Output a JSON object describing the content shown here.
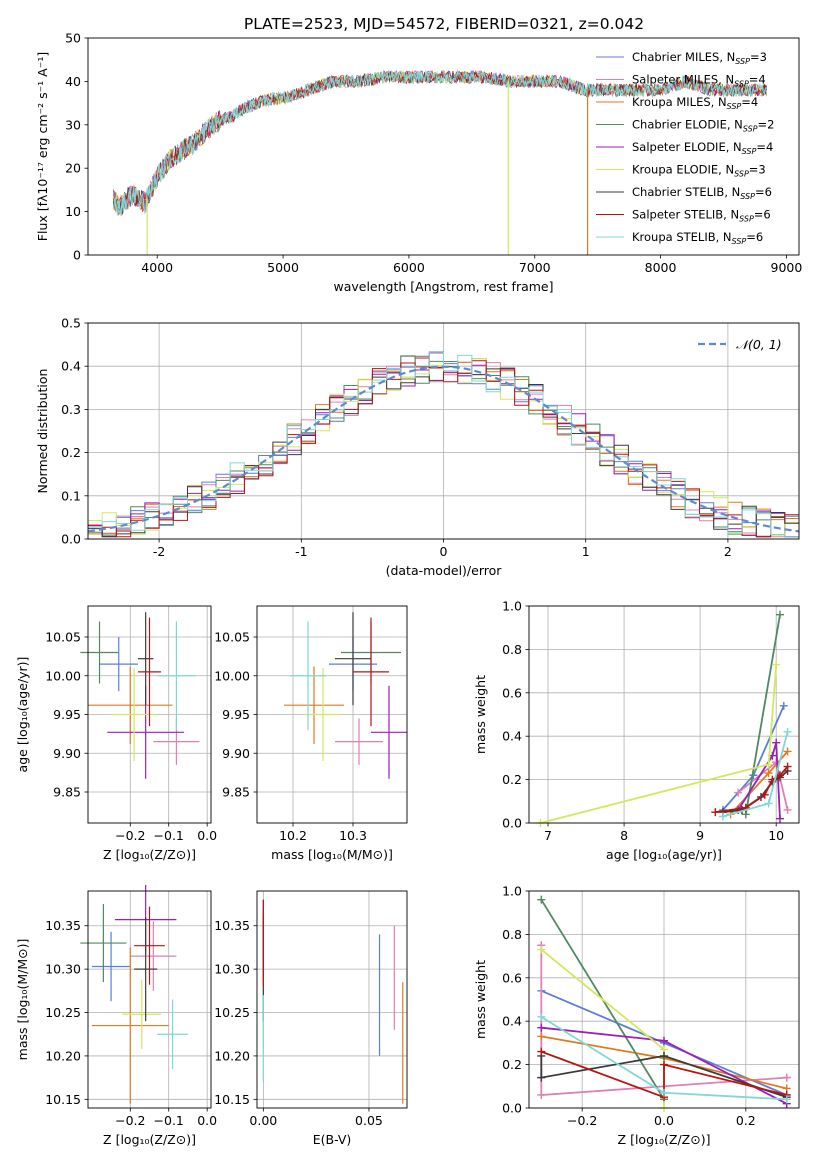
{
  "figure": {
    "title": "PLATE=2523, MJD=54572, FIBERID=0321, z=0.042"
  },
  "chart_data": [
    {
      "id": "spectrum",
      "type": "line",
      "xlabel": "wavelength [Angstrom, rest frame]",
      "ylabel": "Flux [fλ10⁻¹⁷ erg cm⁻² s⁻¹ A⁻¹]",
      "xlim": [
        3450,
        9100
      ],
      "ylim": [
        0,
        50
      ],
      "xticks": [
        4000,
        5000,
        6000,
        7000,
        8000,
        9000
      ],
      "yticks": [
        0,
        10,
        20,
        30,
        40,
        50
      ],
      "grid": false,
      "legend_position": "upper-right",
      "continuum": {
        "x": [
          3650,
          3700,
          3800,
          3900,
          4000,
          4100,
          4200,
          4300,
          4400,
          4500,
          4600,
          4700,
          4800,
          4900,
          5000,
          5200,
          5400,
          5600,
          5800,
          6000,
          6200,
          6400,
          6600,
          6800,
          7000,
          7200,
          7400,
          7600,
          7800,
          8000,
          8200,
          8400,
          8600,
          8850
        ],
        "y": [
          13,
          11,
          14,
          12,
          18,
          22,
          24,
          26,
          29,
          31,
          32,
          34,
          35,
          36,
          36,
          38,
          40,
          40,
          41,
          41,
          41,
          41,
          41,
          40,
          40,
          40,
          38,
          38,
          38,
          38,
          40,
          38,
          38,
          38
        ]
      },
      "dropouts": [
        {
          "x": 3920,
          "series": "Kroupa ELODIE"
        },
        {
          "x": 6790,
          "series": "Kroupa ELODIE"
        },
        {
          "x": 7420,
          "series": "Kroupa MILES"
        }
      ],
      "series": [
        {
          "name": "Chabrier MILES, N_SSP=3",
          "name_main": "Chabrier MILES, N",
          "name_sub": "SSP",
          "name_tail": "=3",
          "color": "#5b7fd6"
        },
        {
          "name": "Salpeter MILES, N_SSP=4",
          "name_main": "Salpeter MILES, N",
          "name_sub": "SSP",
          "name_tail": "=4",
          "color": "#e07fb3"
        },
        {
          "name": "Kroupa MILES, N_SSP=4",
          "name_main": "Kroupa MILES, N",
          "name_sub": "SSP",
          "name_tail": "=4",
          "color": "#e07a1f"
        },
        {
          "name": "Chabrier ELODIE, N_SSP=2",
          "name_main": "Chabrier ELODIE, N",
          "name_sub": "SSP",
          "name_tail": "=2",
          "color": "#4f8a62"
        },
        {
          "name": "Salpeter ELODIE, N_SSP=4",
          "name_main": "Salpeter ELODIE, N",
          "name_sub": "SSP",
          "name_tail": "=4",
          "color": "#9b1fb5"
        },
        {
          "name": "Kroupa ELODIE, N_SSP=3",
          "name_main": "Kroupa ELODIE, N",
          "name_sub": "SSP",
          "name_tail": "=3",
          "color": "#d3e85a"
        },
        {
          "name": "Chabrier STELIB, N_SSP=6",
          "name_main": "Chabrier STELIB, N",
          "name_sub": "SSP",
          "name_tail": "=6",
          "color": "#3b3b3b"
        },
        {
          "name": "Salpeter STELIB, N_SSP=6",
          "name_main": "Salpeter STELIB, N",
          "name_sub": "SSP",
          "name_tail": "=6",
          "color": "#b81414"
        },
        {
          "name": "Kroupa STELIB, N_SSP=6",
          "name_main": "Kroupa STELIB, N",
          "name_sub": "SSP",
          "name_tail": "=6",
          "color": "#7fd7d6"
        }
      ]
    },
    {
      "id": "residuals",
      "type": "line",
      "xlabel": "(data-model)/error",
      "ylabel": "Normed distribution",
      "xlim": [
        -2.5,
        2.5
      ],
      "ylim": [
        0,
        0.5
      ],
      "xticks": [
        -2,
        -1,
        0,
        1,
        2
      ],
      "yticks": [
        0.0,
        0.1,
        0.2,
        0.3,
        0.4,
        0.5
      ],
      "ytick_labels": [
        "0.0",
        "0.1",
        "0.2",
        "0.3",
        "0.4",
        "0.5"
      ],
      "grid": true,
      "legend": "𝒩(0, 1)",
      "legend_position": "upper-right",
      "bin_width": 0.1,
      "bin_start": -2.5,
      "gaussian": {
        "mean": 0,
        "sigma": 1,
        "color": "#5b8ad6"
      }
    },
    {
      "id": "age-Z",
      "type": "scatter",
      "xlabel": "Z [log₁₀(Z/Z⊙)]",
      "ylabel": "age  [log₁₀(age/yr)]",
      "xlim": [
        -0.31,
        0.01
      ],
      "ylim": [
        9.81,
        10.09
      ],
      "xticks": [
        -0.2,
        -0.1,
        0.0
      ],
      "xtick_labels": [
        "−0.2",
        "−0.1",
        "0.0"
      ],
      "yticks": [
        9.85,
        9.9,
        9.95,
        10.0,
        10.05
      ],
      "ytick_labels": [
        "9.85",
        "9.90",
        "9.95",
        "10.00",
        "10.05"
      ],
      "grid": true,
      "points": [
        {
          "color": "#5b7fd6",
          "x": -0.23,
          "xerr": 0.05,
          "y": 10.015,
          "yerr": 0.035
        },
        {
          "color": "#e07fb3",
          "x": -0.08,
          "xerr": 0.06,
          "y": 9.915,
          "yerr": 0.03
        },
        {
          "color": "#e07a1f",
          "x": -0.2,
          "xerr": 0.11,
          "y": 9.962,
          "yerr": 0.05
        },
        {
          "color": "#4f8a62",
          "x": -0.28,
          "xerr": 0.05,
          "y": 10.03,
          "yerr": 0.04
        },
        {
          "color": "#9b1fb5",
          "x": -0.16,
          "xerr": 0.1,
          "y": 9.927,
          "yerr": 0.06
        },
        {
          "color": "#d3e85a",
          "x": -0.19,
          "xerr": 0.06,
          "y": 9.95,
          "yerr": 0.06
        },
        {
          "color": "#3b3b3b",
          "x": -0.16,
          "xerr": 0.02,
          "y": 10.022,
          "yerr": 0.06
        },
        {
          "color": "#b81414",
          "x": -0.15,
          "xerr": 0.03,
          "y": 10.005,
          "yerr": 0.07
        },
        {
          "color": "#7fd7d6",
          "x": -0.08,
          "xerr": 0.05,
          "y": 10.0,
          "yerr": 0.07
        }
      ]
    },
    {
      "id": "age-mass",
      "type": "scatter",
      "xlabel": "mass [log₁₀(M/M⊙)]",
      "ylabel": "",
      "xlim": [
        10.14,
        10.39
      ],
      "ylim": [
        9.81,
        10.09
      ],
      "xticks": [
        10.2,
        10.3
      ],
      "xtick_labels": [
        "10.2",
        "10.3"
      ],
      "yticks": [
        9.85,
        9.9,
        9.95,
        10.0,
        10.05
      ],
      "ytick_labels": [
        "9.85",
        "9.90",
        "9.95",
        "10.00",
        "10.05"
      ],
      "grid": true,
      "points": [
        {
          "color": "#5b7fd6",
          "x": 10.3,
          "xerr": 0.04,
          "y": 10.015,
          "yerr": 0.035
        },
        {
          "color": "#e07fb3",
          "x": 10.31,
          "xerr": 0.04,
          "y": 9.915,
          "yerr": 0.03
        },
        {
          "color": "#e07a1f",
          "x": 10.235,
          "xerr": 0.05,
          "y": 9.962,
          "yerr": 0.05
        },
        {
          "color": "#4f8a62",
          "x": 10.33,
          "xerr": 0.05,
          "y": 10.03,
          "yerr": 0.04
        },
        {
          "color": "#9b1fb5",
          "x": 10.36,
          "xerr": 0.03,
          "y": 9.927,
          "yerr": 0.06
        },
        {
          "color": "#d3e85a",
          "x": 10.25,
          "xerr": 0.03,
          "y": 9.95,
          "yerr": 0.06
        },
        {
          "color": "#3b3b3b",
          "x": 10.3,
          "xerr": 0.03,
          "y": 10.022,
          "yerr": 0.06
        },
        {
          "color": "#b81414",
          "x": 10.33,
          "xerr": 0.03,
          "y": 10.005,
          "yerr": 0.07
        },
        {
          "color": "#7fd7d6",
          "x": 10.225,
          "xerr": 0.03,
          "y": 10.0,
          "yerr": 0.07
        }
      ]
    },
    {
      "id": "weight-age",
      "type": "line",
      "xlabel": "age  [log₁₀(age/yr)]",
      "ylabel": "mass weight",
      "xlim": [
        6.75,
        10.3
      ],
      "ylim": [
        0,
        1.0
      ],
      "xticks": [
        7,
        8,
        9,
        10
      ],
      "yticks": [
        0.0,
        0.2,
        0.4,
        0.6,
        0.8,
        1.0
      ],
      "ytick_labels": [
        "0.0",
        "0.2",
        "0.4",
        "0.6",
        "0.8",
        "1.0"
      ],
      "grid": true,
      "series": [
        {
          "color": "#5b7fd6",
          "x": [
            9.3,
            9.7,
            10.1
          ],
          "y": [
            0.06,
            0.22,
            0.54
          ]
        },
        {
          "color": "#e07fb3",
          "x": [
            9.5,
            10.0,
            10.15
          ],
          "y": [
            0.14,
            0.28,
            0.06
          ]
        },
        {
          "color": "#e07a1f",
          "x": [
            9.4,
            9.9,
            10.15
          ],
          "y": [
            0.04,
            0.23,
            0.33
          ]
        },
        {
          "color": "#4f8a62",
          "x": [
            9.6,
            10.05
          ],
          "y": [
            0.04,
            0.96
          ]
        },
        {
          "color": "#9b1fb5",
          "x": [
            9.5,
            9.95,
            10.0,
            10.05
          ],
          "y": [
            0.06,
            0.31,
            0.37,
            0.02
          ]
        },
        {
          "color": "#d3e85a",
          "x": [
            6.9,
            9.9,
            10.0
          ],
          "y": [
            0.0,
            0.27,
            0.73
          ]
        },
        {
          "color": "#3b3b3b",
          "x": [
            9.3,
            9.55,
            9.8,
            9.95,
            10.05,
            10.15
          ],
          "y": [
            0.05,
            0.06,
            0.12,
            0.19,
            0.21,
            0.24
          ]
        },
        {
          "color": "#b81414",
          "x": [
            9.2,
            9.6,
            9.85,
            9.95,
            10.05,
            10.15
          ],
          "y": [
            0.05,
            0.07,
            0.13,
            0.2,
            0.22,
            0.26
          ]
        },
        {
          "color": "#7fd7d6",
          "x": [
            9.3,
            9.9,
            10.15
          ],
          "y": [
            0.03,
            0.09,
            0.42
          ]
        }
      ]
    },
    {
      "id": "mass-Z",
      "type": "scatter",
      "xlabel": "Z [log₁₀(Z/Z⊙)]",
      "ylabel": "mass [log₁₀(M/M⊙)]",
      "xlim": [
        -0.31,
        0.01
      ],
      "ylim": [
        10.14,
        10.39
      ],
      "xticks": [
        -0.2,
        -0.1,
        0.0
      ],
      "xtick_labels": [
        "−0.2",
        "−0.1",
        "0.0"
      ],
      "yticks": [
        10.15,
        10.2,
        10.25,
        10.3,
        10.35
      ],
      "ytick_labels": [
        "10.15",
        "10.20",
        "10.25",
        "10.30",
        "10.35"
      ],
      "grid": true,
      "points": [
        {
          "color": "#5b7fd6",
          "x": -0.25,
          "xerr": 0.05,
          "y": 10.303,
          "yerr": 0.04
        },
        {
          "color": "#e07fb3",
          "x": -0.14,
          "xerr": 0.06,
          "y": 10.315,
          "yerr": 0.04
        },
        {
          "color": "#e07a1f",
          "x": -0.2,
          "xerr": 0.1,
          "y": 10.235,
          "yerr": 0.09
        },
        {
          "color": "#4f8a62",
          "x": -0.27,
          "xerr": 0.06,
          "y": 10.33,
          "yerr": 0.045
        },
        {
          "color": "#9b1fb5",
          "x": -0.16,
          "xerr": 0.08,
          "y": 10.357,
          "yerr": 0.04
        },
        {
          "color": "#d3e85a",
          "x": -0.17,
          "xerr": 0.05,
          "y": 10.248,
          "yerr": 0.04
        },
        {
          "color": "#3b3b3b",
          "x": -0.16,
          "xerr": 0.03,
          "y": 10.3,
          "yerr": 0.06
        },
        {
          "color": "#b81414",
          "x": -0.15,
          "xerr": 0.04,
          "y": 10.327,
          "yerr": 0.045
        },
        {
          "color": "#7fd7d6",
          "x": -0.09,
          "xerr": 0.04,
          "y": 10.225,
          "yerr": 0.04
        }
      ]
    },
    {
      "id": "mass-ebv",
      "type": "scatter",
      "xlabel": "E(B-V)",
      "ylabel": "",
      "xlim": [
        -0.003,
        0.068
      ],
      "ylim": [
        10.14,
        10.39
      ],
      "xticks": [
        0.0,
        0.05
      ],
      "xtick_labels": [
        "0.00",
        "0.05"
      ],
      "yticks": [
        10.15,
        10.2,
        10.25,
        10.3,
        10.35
      ],
      "ytick_labels": [
        "10.15",
        "10.20",
        "10.25",
        "10.30",
        "10.35"
      ],
      "grid": true,
      "points": [
        {
          "color": "#5b7fd6",
          "x": 0.055,
          "xerr": 0.0,
          "y": 10.27,
          "yerr": 0.07
        },
        {
          "color": "#e07fb3",
          "x": 0.062,
          "xerr": 0.0,
          "y": 10.29,
          "yerr": 0.06
        },
        {
          "color": "#e07a1f",
          "x": 0.066,
          "xerr": 0.0,
          "y": 10.215,
          "yerr": 0.07
        },
        {
          "color": "#4f8a62",
          "x": 0.0,
          "xerr": 0.0,
          "y": 10.33,
          "yerr": 0.04
        },
        {
          "color": "#9b1fb5",
          "x": 0.0,
          "xerr": 0.0,
          "y": 10.34,
          "yerr": 0.04
        },
        {
          "color": "#d3e85a",
          "x": 0.0,
          "xerr": 0.0,
          "y": 10.25,
          "yerr": 0.04
        },
        {
          "color": "#3b3b3b",
          "x": 0.0,
          "xerr": 0.0,
          "y": 10.3,
          "yerr": 0.06
        },
        {
          "color": "#b81414",
          "x": 0.0,
          "xerr": 0.0,
          "y": 10.33,
          "yerr": 0.05
        },
        {
          "color": "#7fd7d6",
          "x": 0.0,
          "xerr": 0.0,
          "y": 10.22,
          "yerr": 0.05
        }
      ]
    },
    {
      "id": "weight-Z",
      "type": "line",
      "xlabel": "Z [log₁₀(Z/Z⊙)]",
      "ylabel": "mass weight",
      "xlim": [
        -0.33,
        0.33
      ],
      "ylim": [
        0,
        1.0
      ],
      "xticks": [
        -0.2,
        0.0,
        0.2
      ],
      "xtick_labels": [
        "−0.2",
        "0.0",
        "0.2"
      ],
      "yticks": [
        0.0,
        0.2,
        0.4,
        0.6,
        0.8,
        1.0
      ],
      "ytick_labels": [
        "0.0",
        "0.2",
        "0.4",
        "0.6",
        "0.8",
        "1.0"
      ],
      "grid": true,
      "series": [
        {
          "color": "#5b7fd6",
          "x": [
            -0.3,
            0.0,
            0.3
          ],
          "y": [
            0.54,
            0.3,
            0.06
          ]
        },
        {
          "color": "#e07fb3",
          "x": [
            -0.3,
            -0.3,
            0.3,
            0.3
          ],
          "y": [
            0.75,
            0.06,
            0.14,
            0.14
          ]
        },
        {
          "color": "#e07a1f",
          "x": [
            -0.3,
            0.0,
            0.3
          ],
          "y": [
            0.33,
            0.23,
            0.09
          ]
        },
        {
          "color": "#4f8a62",
          "x": [
            -0.3,
            0.0,
            0.0
          ],
          "y": [
            0.96,
            0.04,
            0.04
          ]
        },
        {
          "color": "#9b1fb5",
          "x": [
            -0.3,
            0.0,
            0.3
          ],
          "y": [
            0.37,
            0.31,
            0.02
          ]
        },
        {
          "color": "#d3e85a",
          "x": [
            -0.3,
            0.0,
            0.0
          ],
          "y": [
            0.73,
            0.27,
            0.0
          ]
        },
        {
          "color": "#3b3b3b",
          "x": [
            -0.3,
            -0.3,
            0.0,
            0.3
          ],
          "y": [
            0.24,
            0.14,
            0.24,
            0.05
          ]
        },
        {
          "color": "#b81414",
          "x": [
            -0.3,
            0.0,
            0.0,
            0.3
          ],
          "y": [
            0.26,
            0.05,
            0.2,
            0.06
          ]
        },
        {
          "color": "#7fd7d6",
          "x": [
            -0.3,
            0.0,
            0.3
          ],
          "y": [
            0.42,
            0.07,
            0.04
          ]
        }
      ]
    }
  ]
}
